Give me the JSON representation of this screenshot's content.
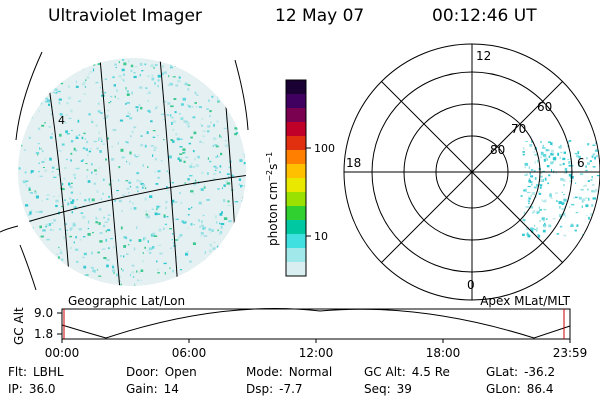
{
  "header": {
    "title": "Ultraviolet Imager",
    "date": "12 May 07",
    "time": "00:12:46 UT"
  },
  "colorbar": {
    "unit_label": "photon cm",
    "unit_exp1": "−2",
    "unit_mid": "s",
    "unit_exp2": "−1",
    "tick_labels": [
      "100",
      "10"
    ],
    "colors": [
      "#1a0033",
      "#400060",
      "#7a0050",
      "#c00028",
      "#e03010",
      "#ff8000",
      "#ffc000",
      "#e8e800",
      "#9ae000",
      "#30d030",
      "#00c8a0",
      "#40e0e0",
      "#a0e8ea",
      "#d8eef0"
    ]
  },
  "left_panel": {
    "caption": "Geographic Lat/Lon",
    "point_marker": "4"
  },
  "right_panel": {
    "caption": "Apex MLat/MLT",
    "mlt_labels": {
      "top": "12",
      "left": "18",
      "right": "6",
      "bottom": "0"
    },
    "lat_labels": [
      "60",
      "70",
      "80"
    ]
  },
  "timeline": {
    "ylabel": "GC Alt",
    "y_ticks": [
      "9.0",
      "1.8"
    ],
    "x_ticks": [
      "00:00",
      "06:00",
      "12:00",
      "18:00",
      "23:59"
    ]
  },
  "info": {
    "row1": [
      {
        "label": "Flt:",
        "value": "LBHL"
      },
      {
        "label": "Door:",
        "value": "Open"
      },
      {
        "label": "Mode:",
        "value": "Normal"
      },
      {
        "label": "GC Alt:",
        "value": "4.5 Re"
      },
      {
        "label": "GLat:",
        "value": "-36.2"
      }
    ],
    "row2": [
      {
        "label": "IP:",
        "value": "36.0"
      },
      {
        "label": "Gain:",
        "value": "14"
      },
      {
        "label": "Dsp:",
        "value": "-7.7"
      },
      {
        "label": "Seq:",
        "value": "39"
      },
      {
        "label": "GLon:",
        "value": "86.4"
      }
    ]
  }
}
